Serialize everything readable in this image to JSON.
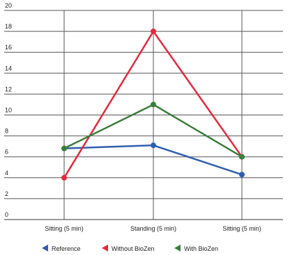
{
  "chart_data": {
    "type": "line",
    "categories": [
      "Sitting (5 min)",
      "Standing (5 min)",
      "Sitting (5 min)"
    ],
    "series": [
      {
        "name": "Reference",
        "values": [
          6.8,
          7.1,
          4.3
        ],
        "color": "#2e5fae"
      },
      {
        "name": "Without BioZen",
        "values": [
          4.0,
          18.0,
          6.0
        ],
        "color": "#e6283c"
      },
      {
        "name": "With BioZen",
        "values": [
          6.8,
          11.0,
          6.0
        ],
        "color": "#3a7d3a"
      }
    ],
    "ylim": [
      0,
      20
    ],
    "y_ticks": [
      "0",
      "2",
      "4",
      "6",
      "8",
      "10",
      "12",
      "14",
      "16",
      "18",
      "20"
    ],
    "grid": true,
    "legend_position": "bottom"
  }
}
